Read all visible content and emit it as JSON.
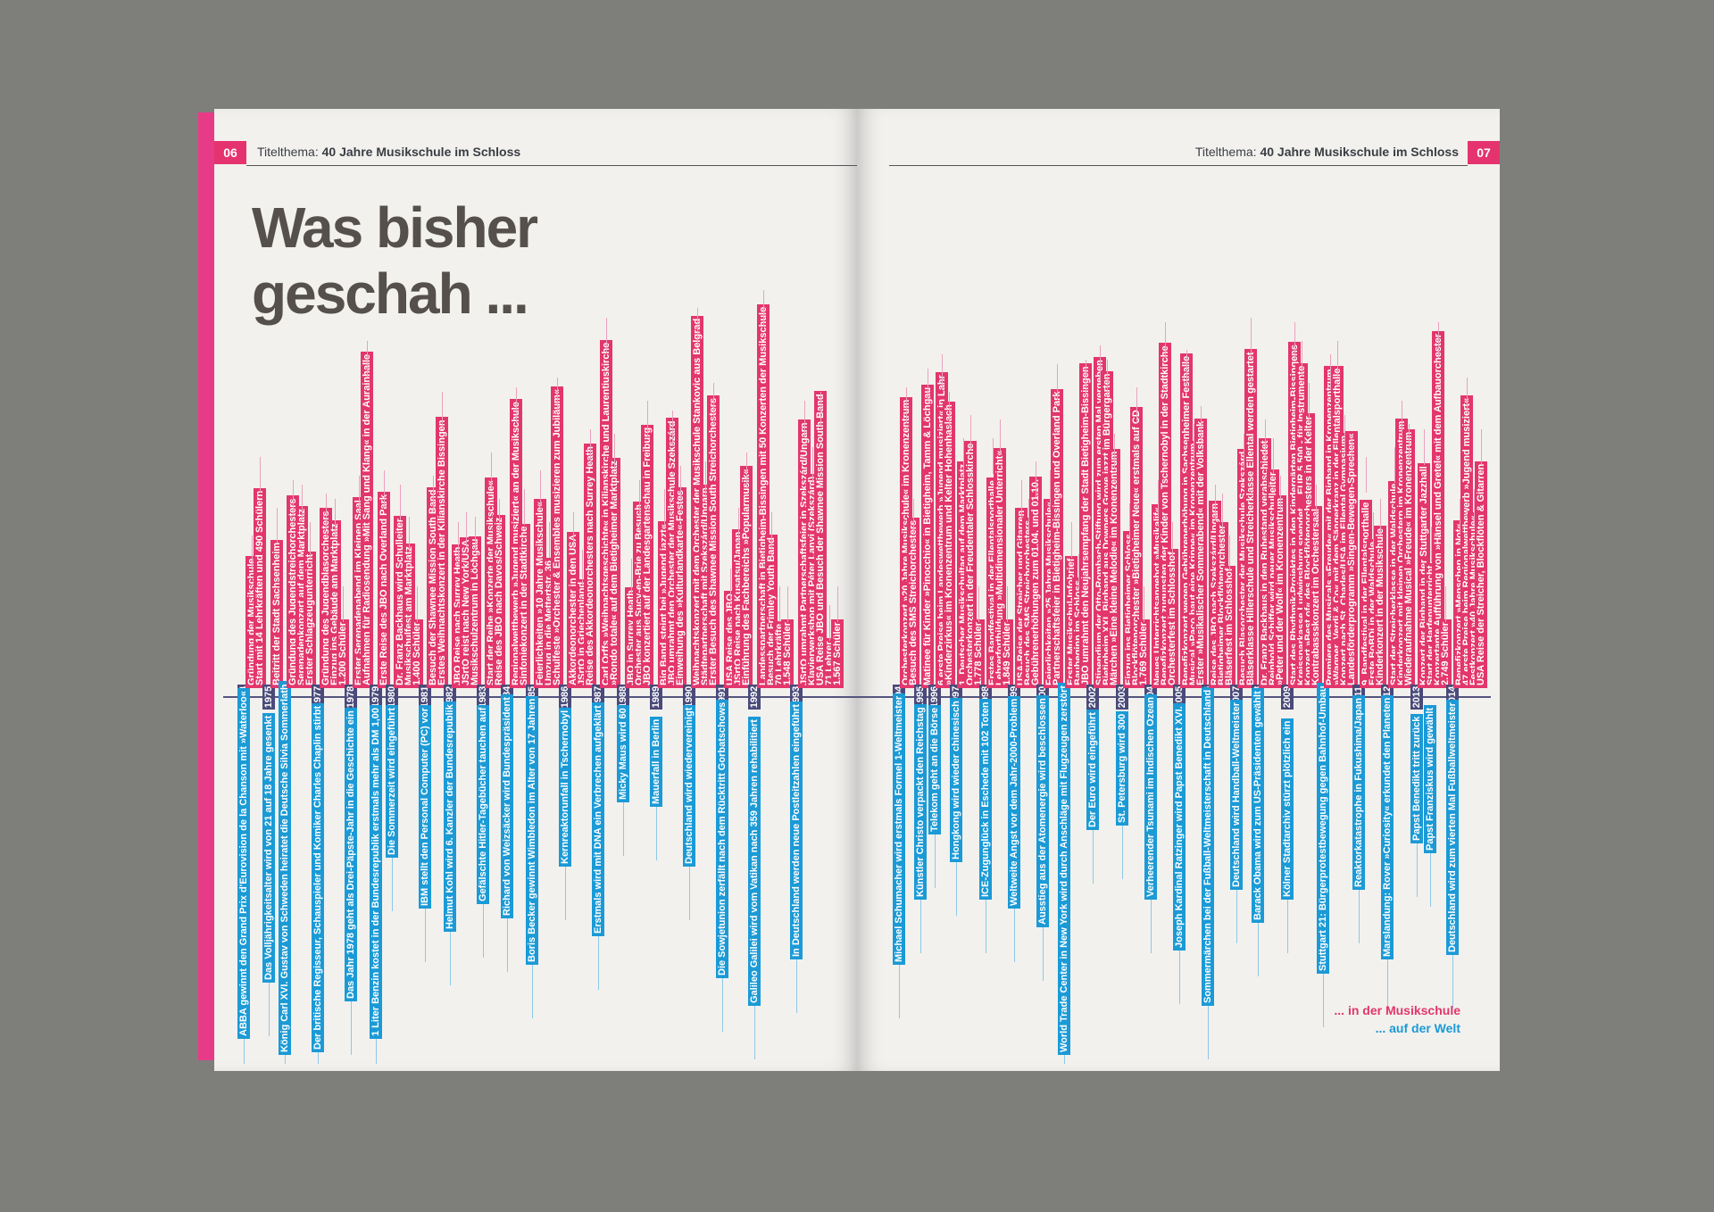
{
  "magazine": {
    "left_page": {
      "page_number": "06",
      "running_head_label": "Titelthema:",
      "running_head_title": "40 Jahre Musikschule im Schloss",
      "headline_line1": "Was bisher",
      "headline_line2": "geschah ..."
    },
    "right_page": {
      "page_number": "07",
      "running_head_label": "Titelthema:",
      "running_head_title": "40 Jahre Musikschule im Schloss",
      "legend_school": "... in der Musikschule",
      "legend_world": "... auf der Welt"
    },
    "colors": {
      "school": "#e2366c",
      "world": "#1b9ad6",
      "year": "#4a4a7a"
    }
  },
  "timeline": {
    "left": [
      {
        "year": "1974",
        "up": [
          "Gründung der Musikschule",
          "Start mit 14 Lehrkräften und 490 Schülern"
        ],
        "down": [
          "ABBA gewinnt den Grand Prix d'Eurovision de la Chanson mit »Waterloo«"
        ]
      },
      {
        "year": "1975",
        "up": [
          "Beitritt der Stadt Sachsenheim"
        ],
        "down": [
          "Das Volljährigkeitsalter wird von 21 auf 18 Jahre gesenkt"
        ]
      },
      {
        "year": "1976",
        "up": [
          "Gründung des Jugendstreichorchesters",
          "Serenadenkonzert auf dem Marktplatz",
          "Erster Schlagzeugunterricht"
        ],
        "down": [
          "König Carl XVI. Gustav von Schweden heiratet die Deutsche Silvia Sommerlath"
        ]
      },
      {
        "year": "1977",
        "up": [
          "Gründung des Jugendblasorchesters",
          "Einzug ins Gebäude am Marktplatz",
          "1.200 Schüler"
        ],
        "down": [
          "Der britische Regisseur, Schauspieler und Komiker Charles Chaplin stirbt"
        ]
      },
      {
        "year": "1978",
        "up": [
          "Erster Serenadenabend im Kleinen Saal",
          "Aufnahmen für Radiosendung »Mit Sang und Klang« in der Aurainhalle"
        ],
        "down": [
          "Das Jahr 1978 geht als Drei-Päpste-Jahr in die Geschichte ein"
        ]
      },
      {
        "year": "1979",
        "up": [
          "Erste Reise des JBO nach Overland Park"
        ],
        "down": [
          "1 Liter Benzin kostet in der Bundesrepublik erstmals mehr als DM 1,00"
        ]
      },
      {
        "year": "1980",
        "up": [
          "Dr. Franz Backhaus wird Schulleiter",
          "Musikschulfest am Marktplatz",
          "1.400 Schüler"
        ],
        "down": [
          "Die Sommerzeit wird eingeführt"
        ]
      },
      {
        "year": "1981",
        "up": [
          "Besuch der Shawnee Mission South Band",
          "Erstes Weihnachtskonzert in der Kilianskirche Bissingen"
        ],
        "down": [
          "IBM stellt den Personal Computer (PC) vor"
        ]
      },
      {
        "year": "1982",
        "up": [
          "JBO Reise nach Surrey Heath",
          "JSrtO reist nach New York/USA",
          "Musikschulzentrum in Löchgau"
        ],
        "down": [
          "Helmut Kohl wird 6. Kanzler der Bundesrepublik"
        ]
      },
      {
        "year": "1983",
        "up": [
          "Start der Reihe »Konzerte der Musikschule«",
          "Reise des JBO nach Davos/Schweiz"
        ],
        "down": [
          "Gefälschte Hitler-Tagebücher tauchen auf"
        ]
      },
      {
        "year": "1984",
        "up": [
          "Regionalwettbewerb »Jugend musiziert« an der Musikschule",
          "Sinfoniekonzert in der Stadtkirche"
        ],
        "down": [
          "Richard von Weizsäcker wird Bundespräsident"
        ]
      },
      {
        "year": "1985",
        "up": [
          "Feierlichkeiten »10 Jahre Musikschule«",
          "Umzug in die Mettertstr. 36",
          "Schulfeste »Orchester & Ensembles musizieren zum Jubiläum«"
        ],
        "down": [
          "Boris Becker gewinnt Wimbledon im Alter von 17 Jahren"
        ]
      },
      {
        "year": "1986",
        "up": [
          "Akkordeonorchester in den USA",
          "JSrtO in Griechenland",
          "Reise des Akkordeonorchesters nach Surrey Heath"
        ],
        "down": [
          "Kernreaktorunfall in Tschernobyl"
        ]
      },
      {
        "year": "1987",
        "up": [
          "Carl Orffs »Weihnachtsgeschichte« in Kilianskirche und Laurentiuskirche",
          "»Rondo totale« auf dem Bietigheimer Marktplatz"
        ],
        "down": [
          "Erstmals wird mit DNA ein Verbrechen aufgeklärt"
        ]
      },
      {
        "year": "1988",
        "up": [
          "JBO in Surrey Heath",
          "Orchester aus Sucy-en-Brie zu Besuch",
          "JBO konzertiert auf der Landesgartenschau in Freiburg"
        ],
        "down": [
          "Micky Maus wird 60"
        ]
      },
      {
        "year": "1989",
        "up": [
          "Big Band steigt bei »Jugend jazzt«",
          "JBO umrahmt den Orchester der Musikschule Szekszárd",
          "Einweihung des »Kulturlandkarte«-Festes"
        ],
        "down": [
          "Mauerfall in Berlin"
        ]
      },
      {
        "year": "1990",
        "up": [
          "Weihnachtskonzert mit dem Orchester der Musikschule Stankovic aus Belgrad",
          "Städtepartnerschaft mit Szekszárd/Ungarn",
          "Erster Besuch des Shawnee Mission South Streichorchesters"
        ],
        "down": [
          "Deutschland wird wiedervereinigt"
        ]
      },
      {
        "year": "1991",
        "up": [
          "USA Reise des JBO",
          "JSrtO Reise nach Kusatsu/Japan",
          "Einführung des Fachbereichs »Popularmusik«"
        ],
        "down": [
          "Die Sowjetunion zerfällt nach dem Rücktritt Gorbatschows"
        ]
      },
      {
        "year": "1992",
        "up": [
          "Landesspartnerschaft in Bietigheim-Bissingen mit 50 Konzerten der Musikschule",
          "Besuch der Frimley Youth Band",
          "70 Lehrkräfte",
          "1.548 Schüler"
        ],
        "down": [
          "Galileo Galilei wird vom Vatikan nach 359 Jahren rehabilitiert"
        ]
      },
      {
        "year": "1993",
        "up": [
          "JSrtO umrahmt Partnerschaftsfeier in Szekszárd/Ungarn",
          "Klavierwerkshop mit Péter Lanyi (Szekszárd)",
          "USA Reise JBO und Besuch der Shawnee Mission South Band",
          "71 Lehrer",
          "1.567 Schüler"
        ],
        "down": [
          "In Deutschland werden neue Postleitzahlen eingeführt"
        ]
      }
    ],
    "right": [
      {
        "year": "1994",
        "up": [
          "Orchesterkonzert »20 Jahre Musikschule« im Kronenzentrum",
          "Besuch des SMS Streichorchesters"
        ],
        "down": [
          "Michael Schumacher wird erstmals Formel 1-Weltmeister"
        ]
      },
      {
        "year": "1995",
        "up": [
          "Matinee für Kinder »Pinocchio« in Bietigheim, Tamm & Löchgau"
        ],
        "down": [
          "Künstler Christo verpackt den Reichstag"
        ]
      },
      {
        "year": "1996",
        "up": [
          "6 erste Preise beim Landeswettbewerb »Jugend musiziert« in Lahr",
          "»Kinderzirkus« im Kronenzentrum und Kelter Hohenhaslach"
        ],
        "down": [
          "Telekom geht an die Börse"
        ]
      },
      {
        "year": "1997",
        "up": [
          "1. Deutscher Musikschultag auf dem Marktplatz",
          "Orchesterkonzert in der Freudentaler Schlosskirche",
          "1.778 Schüler"
        ],
        "down": [
          "Hongkong wird wieder chinesisch"
        ]
      },
      {
        "year": "1998",
        "up": [
          "Erstes Bandfestival in der Ellentalsporthalle",
          "Lehrerfortbildung »Multidimensionaler Unterricht«",
          "1.849 Schüler"
        ],
        "down": [
          "ICE-Zugunglück in Eschede mit 102 Toten"
        ]
      },
      {
        "year": "1999",
        "up": [
          "USA-Reise der Streicher und Gitarren",
          "Besuch des SMS Streichorchesters",
          "Gebührenerhöhungen zum 01.04. und 01.10."
        ],
        "down": [
          "Weltweite Angst vor dem Jahr-2000-Problem"
        ]
      },
      {
        "year": "2000",
        "up": [
          "Feierlichkeiten »25 Jahre Musikschule«",
          "Partnerschaftsfeier in Bietigheim-Bissingen und Overland Park"
        ],
        "down": [
          "Ausstieg aus der Atomenergie wird beschlossen"
        ]
      },
      {
        "year": "2001",
        "up": [
          "Erster Musikschul-Infobrief",
          "Baubeginn im Schloss",
          "JBO umrahmt den Neujahrsempfang der Stadt Bietigheim-Bissingen"
        ],
        "down": [
          "World Trade Center in New York wird durch Anschläge mit Flugzeugen zerstört"
        ]
      },
      {
        "year": "2002",
        "up": [
          "Stipendium der Otto-Rombach-Stiftung wird zum ersten Mal vergeben",
          "Bietigheim XXL Bigband aus Downers Grove jazzt im Bürgergarten",
          "Märchen »Eine kleine Melodie« im Kronenzentrum"
        ],
        "down": [
          "Der Euro wird eingeführt"
        ]
      },
      {
        "year": "2003",
        "up": [
          "Einzug ins Bietigheimer Schloss",
          "Blockflötenorchester »Bietigheimer Neue« erstmals auf CD",
          "1.769 Schüler"
        ],
        "down": [
          "St. Petersburg wird 300"
        ]
      },
      {
        "year": "2004",
        "up": [
          "Neues Unterrichtsangebot »Musikalif«",
          "Benefizkonzert zugunsten der Kinder von Tschernobyl in der Stadtkirche",
          "Orchesterfest im Schlosshof"
        ],
        "down": [
          "Verheerender Tsunami im Indischen Ozean"
        ]
      },
      {
        "year": "2005",
        "up": [
          "Benefizkonzert wegen Gebührenerhöhung in Sachsenheimer Festhalle",
          "Musical »Paco baut eine Krippe« im Kronenzentrum",
          "Erster »Musikalischer Sommerabend« mit der Volksbank"
        ],
        "down": [
          "Joseph Kardinal Ratzinger wird Papst Benedikt XVI."
        ]
      },
      {
        "year": "2006",
        "up": [
          "Reise des JBO nach Szekszárd/Ungarn",
          "Bietigheimer Blockflötenorchester",
          "Bläserfest im Schlosshof"
        ],
        "down": [
          "Sommermärchen bei der Fußball-Weltmeisterschaft in Deutschland"
        ]
      },
      {
        "year": "2007",
        "up": [
          "Besuch Blasorchester der Musikschule Szekszárd",
          "Bläserklasse Hillerschule und Streicherklasse Ellental werden gestartet"
        ],
        "down": [
          "Deutschland wird Handball-Weltmeister"
        ]
      },
      {
        "year": "2008",
        "up": [
          "Dr. Franz Backhaus in den Ruhestand verabschiedet",
          "Reinhold Schiffer wird neuer Musikschulleiter",
          "»Peter und der Wolf« im Kronenzentrum"
        ],
        "down": [
          "Barack Obama wird zum US-Präsidenten gewählt"
        ]
      },
      {
        "year": "2009",
        "up": [
          "Start des Rhythmik-Projektes in den Kindergärten Bietigheim-Bissingens",
          "Kreissparkasse Ludwigsburg spendet ... EUR 5.500,- für Instrumente",
          "Konzert »Best of« des Blockflötenorchesters in der Kelter",
          "Kontrabassskonzert im Orchestersaal"
        ],
        "down": [
          "Kölner Stadtarchiv stürzt plötzlich ein"
        ]
      },
      {
        "year": "2010",
        "up": [
          "Premiere des Musicals »Freude« mit der Bigband in Kronenzentrum",
          "»Wagner, Verdi & Co« mit dem Sängerkranz in der Ellentalsporthalle",
          "Konzert nach St. Charles/USA im Ellental Gymnasium",
          "Landesförderprogramm »Singen-Bewegen-Sprechen«"
        ],
        "down": [
          "Stuttgart 21: Bürgerprotestbewegung gegen Bahnhof-Umbau"
        ]
      },
      {
        "year": "2011",
        "up": [
          "9. Bandfestival in der Ellentalsporthalle",
          "Erste BoBDi in der Waldschule",
          "Kinderkonzert in der Musikschule"
        ],
        "down": [
          "Reaktorkatastrophe in Fukushima/Japan"
        ]
      },
      {
        "year": "2012",
        "up": [
          "Start der Streicherklasse in der Waldschule",
          "Kinderkonzert mit kleinen Orchestern im Kronenzentrum",
          "Wiederaufnahme Musical »Freude« im Kronenzentrum"
        ],
        "down": [
          "Marslandung: Rover »Curiosity« erkundet den Planeten"
        ]
      },
      {
        "year": "2013",
        "up": [
          "Konzert der Bigband in der Stuttgarter Jazzhall",
          "Start der Harfenunterricht",
          "Konzertante Aufführung von »Hänsel und Gretel« mit dem Aufbauorchester",
          "2.749 Schüler"
        ],
        "down": [
          "Papst Benedikt tritt zurück",
          "Papst Franziskus wird gewählt"
        ]
      },
      {
        "year": "2014",
        "up": [
          "Benefizkonzert »Menschen in Not«",
          "47 erste Preise beim Regionalwettbewerb »Jugend musiziert«",
          "Festkonzert »40 Jahre Musikschule«",
          "USA Reise der Streicher, Blockflöten & Gitarren"
        ],
        "down": [
          "Deutschland wird zum vierten Mal Fußballweltmeister"
        ]
      }
    ]
  }
}
